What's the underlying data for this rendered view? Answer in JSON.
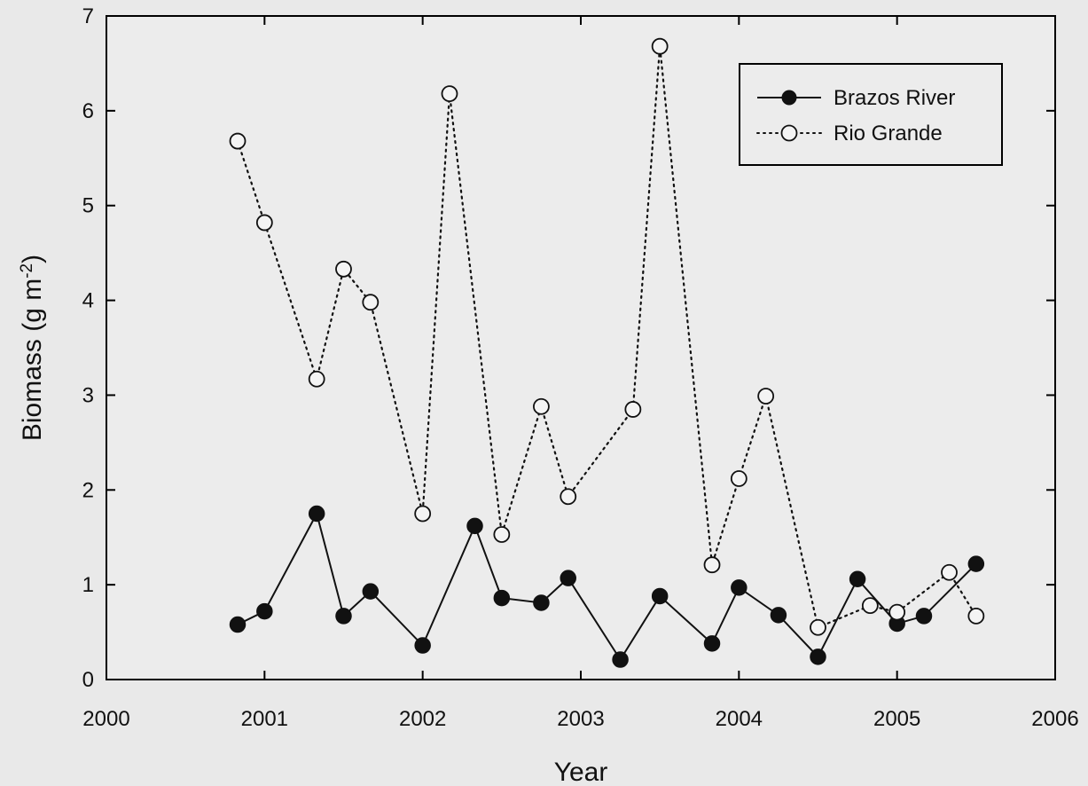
{
  "chart_data": {
    "type": "line",
    "title": "",
    "xlabel": "Year",
    "ylabel": "Biomass (g m-2)",
    "ylabel_base": "Biomass (g m",
    "ylabel_sup": "-2",
    "ylabel_end": ")",
    "xlim": [
      2000,
      2006
    ],
    "ylim": [
      0,
      7
    ],
    "xticks": [
      2000,
      2001,
      2002,
      2003,
      2004,
      2005,
      2006
    ],
    "yticks": [
      0,
      1,
      2,
      3,
      4,
      5,
      6,
      7
    ],
    "grid": false,
    "legend_position": "top-right",
    "series": [
      {
        "name": "Brazos River",
        "marker": "filled-circle",
        "line_style": "solid",
        "color": "#111111",
        "x": [
          2000.83,
          2001.0,
          2001.33,
          2001.5,
          2001.67,
          2002.0,
          2002.33,
          2002.5,
          2002.75,
          2002.92,
          2003.25,
          2003.5,
          2003.83,
          2004.0,
          2004.25,
          2004.5,
          2004.75,
          2005.0,
          2005.17,
          2005.5
        ],
        "y": [
          0.58,
          0.72,
          1.75,
          0.67,
          0.93,
          0.36,
          1.62,
          0.86,
          0.81,
          1.07,
          0.21,
          0.88,
          0.38,
          0.97,
          0.68,
          0.24,
          1.06,
          0.59,
          0.67,
          1.22
        ]
      },
      {
        "name": "Rio Grande",
        "marker": "open-circle",
        "line_style": "dotted",
        "color": "#111111",
        "x": [
          2000.83,
          2001.0,
          2001.33,
          2001.5,
          2001.67,
          2002.0,
          2002.17,
          2002.5,
          2002.75,
          2002.92,
          2003.33,
          2003.5,
          2003.83,
          2004.0,
          2004.17,
          2004.5,
          2004.83,
          2005.0,
          2005.33,
          2005.5
        ],
        "y": [
          5.68,
          4.82,
          3.17,
          4.33,
          3.98,
          1.75,
          6.18,
          1.53,
          2.88,
          1.93,
          2.85,
          6.68,
          1.21,
          2.12,
          2.99,
          0.55,
          0.78,
          0.71,
          1.13,
          0.67
        ]
      }
    ]
  }
}
